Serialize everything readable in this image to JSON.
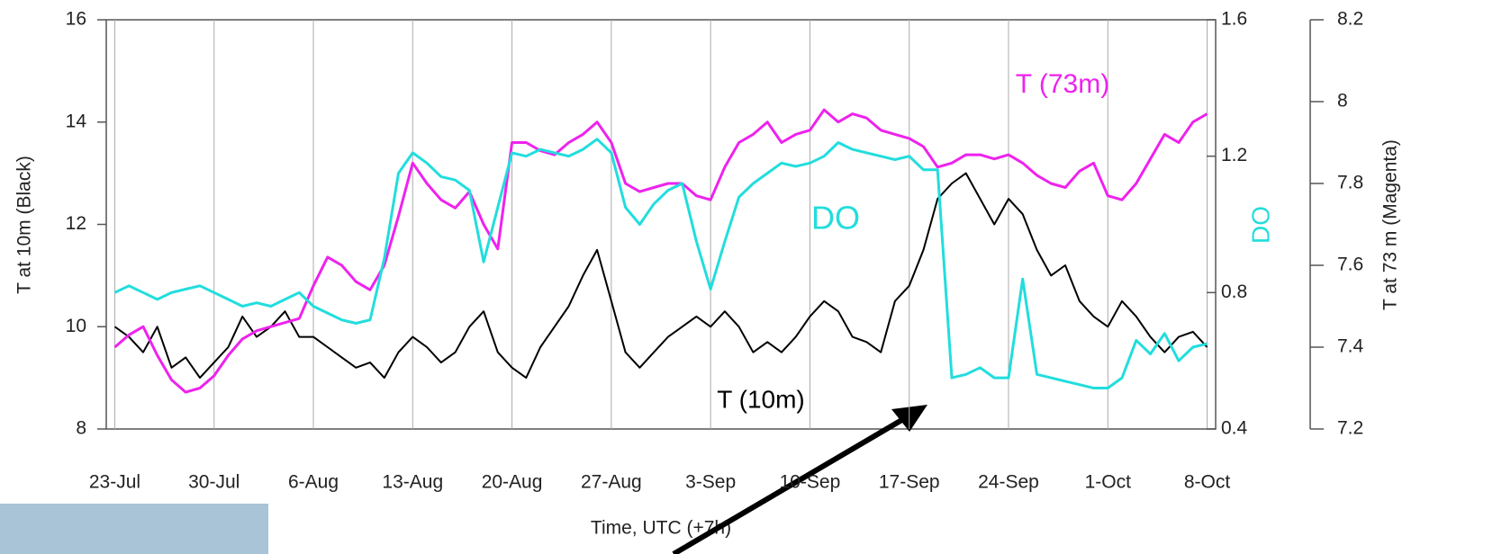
{
  "chart_data": {
    "type": "line",
    "x_label": "Time, UTC (+7h)",
    "y_label": "T at 10m (Black)",
    "y2_label": "DO",
    "y3_label": "T at 73 m (Magenta)",
    "x": [
      204,
      205,
      206,
      207,
      208,
      209,
      210,
      211,
      212,
      213,
      214,
      215,
      216,
      217,
      218,
      219,
      220,
      221,
      222,
      223,
      224,
      225,
      226,
      227,
      228,
      229,
      230,
      231,
      232,
      233,
      234,
      235,
      236,
      237,
      238,
      239,
      240,
      241,
      242,
      243,
      244,
      245,
      246,
      247,
      248,
      249,
      250,
      251,
      252,
      253,
      254,
      255,
      256,
      257,
      258,
      259,
      260,
      261,
      262,
      263,
      264,
      265,
      266,
      267,
      268,
      269,
      270,
      271,
      272,
      273,
      274,
      275,
      276,
      277,
      278,
      279,
      280,
      281
    ],
    "xlim": [
      203.4,
      281.6
    ],
    "xticks": [
      {
        "value": 204,
        "label": "23-Jul"
      },
      {
        "value": 211,
        "label": "30-Jul"
      },
      {
        "value": 218,
        "label": "6-Aug"
      },
      {
        "value": 225,
        "label": "13-Aug"
      },
      {
        "value": 232,
        "label": "20-Aug"
      },
      {
        "value": 239,
        "label": "27-Aug"
      },
      {
        "value": 246,
        "label": "3-Sep"
      },
      {
        "value": 253,
        "label": "10-Sep"
      },
      {
        "value": 260,
        "label": "17-Sep"
      },
      {
        "value": 267,
        "label": "24-Sep"
      },
      {
        "value": 274,
        "label": "1-Oct"
      },
      {
        "value": 281,
        "label": "8-Oct"
      }
    ],
    "ylim": [
      8,
      16
    ],
    "yticks": [
      8,
      10,
      12,
      14,
      16
    ],
    "y2lim": [
      0.4,
      1.6
    ],
    "y2ticks": [
      0.4,
      0.8,
      1.2,
      1.6
    ],
    "y3lim": [
      7.2,
      8.2
    ],
    "y3ticks": [
      7.2,
      7.4,
      7.6,
      7.8,
      8,
      8.2
    ],
    "grid": true,
    "series": [
      {
        "name": "T (10m)",
        "color": "#000000",
        "axis": "y",
        "values": [
          10.0,
          9.8,
          9.5,
          10.0,
          9.2,
          9.4,
          9.0,
          9.3,
          9.6,
          10.2,
          9.8,
          10.0,
          10.3,
          9.8,
          9.8,
          9.6,
          9.4,
          9.2,
          9.3,
          9.0,
          9.5,
          9.8,
          9.6,
          9.3,
          9.5,
          10.0,
          10.3,
          9.5,
          9.2,
          9.0,
          9.6,
          10.0,
          10.4,
          11.0,
          11.5,
          10.5,
          9.5,
          9.2,
          9.5,
          9.8,
          10.0,
          10.2,
          10.0,
          10.3,
          10.0,
          9.5,
          9.7,
          9.5,
          9.8,
          10.2,
          10.5,
          10.3,
          9.8,
          9.7,
          9.5,
          10.5,
          10.8,
          11.5,
          12.5,
          12.8,
          13.0,
          12.5,
          12.0,
          12.5,
          12.2,
          11.5,
          11.0,
          11.2,
          10.5,
          10.2,
          10.0,
          10.5,
          10.2,
          9.8,
          9.5,
          9.8,
          9.9,
          9.6
        ]
      },
      {
        "name": "T (73m)",
        "color": "#ee22ee",
        "axis": "y3",
        "values": [
          7.4,
          7.43,
          7.45,
          7.38,
          7.32,
          7.29,
          7.3,
          7.33,
          7.38,
          7.42,
          7.44,
          7.45,
          7.46,
          7.47,
          7.55,
          7.62,
          7.6,
          7.56,
          7.54,
          7.6,
          7.72,
          7.85,
          7.8,
          7.76,
          7.74,
          7.78,
          7.7,
          7.64,
          7.9,
          7.9,
          7.88,
          7.87,
          7.9,
          7.92,
          7.95,
          7.9,
          7.8,
          7.78,
          7.79,
          7.8,
          7.8,
          7.77,
          7.76,
          7.84,
          7.9,
          7.92,
          7.95,
          7.9,
          7.92,
          7.93,
          7.98,
          7.95,
          7.97,
          7.96,
          7.93,
          7.92,
          7.91,
          7.89,
          7.84,
          7.85,
          7.87,
          7.87,
          7.86,
          7.87,
          7.85,
          7.82,
          7.8,
          7.79,
          7.83,
          7.85,
          7.77,
          7.76,
          7.8,
          7.86,
          7.92,
          7.9,
          7.95,
          7.97
        ]
      },
      {
        "name": "DO",
        "color": "#22dddd",
        "axis": "y2",
        "values": [
          0.8,
          0.82,
          0.8,
          0.78,
          0.8,
          0.81,
          0.82,
          0.8,
          0.78,
          0.76,
          0.77,
          0.76,
          0.78,
          0.8,
          0.76,
          0.74,
          0.72,
          0.71,
          0.72,
          0.9,
          1.15,
          1.21,
          1.18,
          1.14,
          1.13,
          1.1,
          0.89,
          1.05,
          1.21,
          1.2,
          1.22,
          1.21,
          1.2,
          1.22,
          1.25,
          1.21,
          1.05,
          1.0,
          1.06,
          1.1,
          1.12,
          0.95,
          0.81,
          0.95,
          1.08,
          1.12,
          1.15,
          1.18,
          1.17,
          1.18,
          1.2,
          1.24,
          1.22,
          1.21,
          1.2,
          1.19,
          1.2,
          1.16,
          1.16,
          0.55,
          0.56,
          0.58,
          0.55,
          0.55,
          0.84,
          0.56,
          0.55,
          0.54,
          0.53,
          0.52,
          0.52,
          0.55,
          0.66,
          0.62,
          0.68,
          0.6,
          0.64,
          0.65
        ]
      }
    ]
  }
}
